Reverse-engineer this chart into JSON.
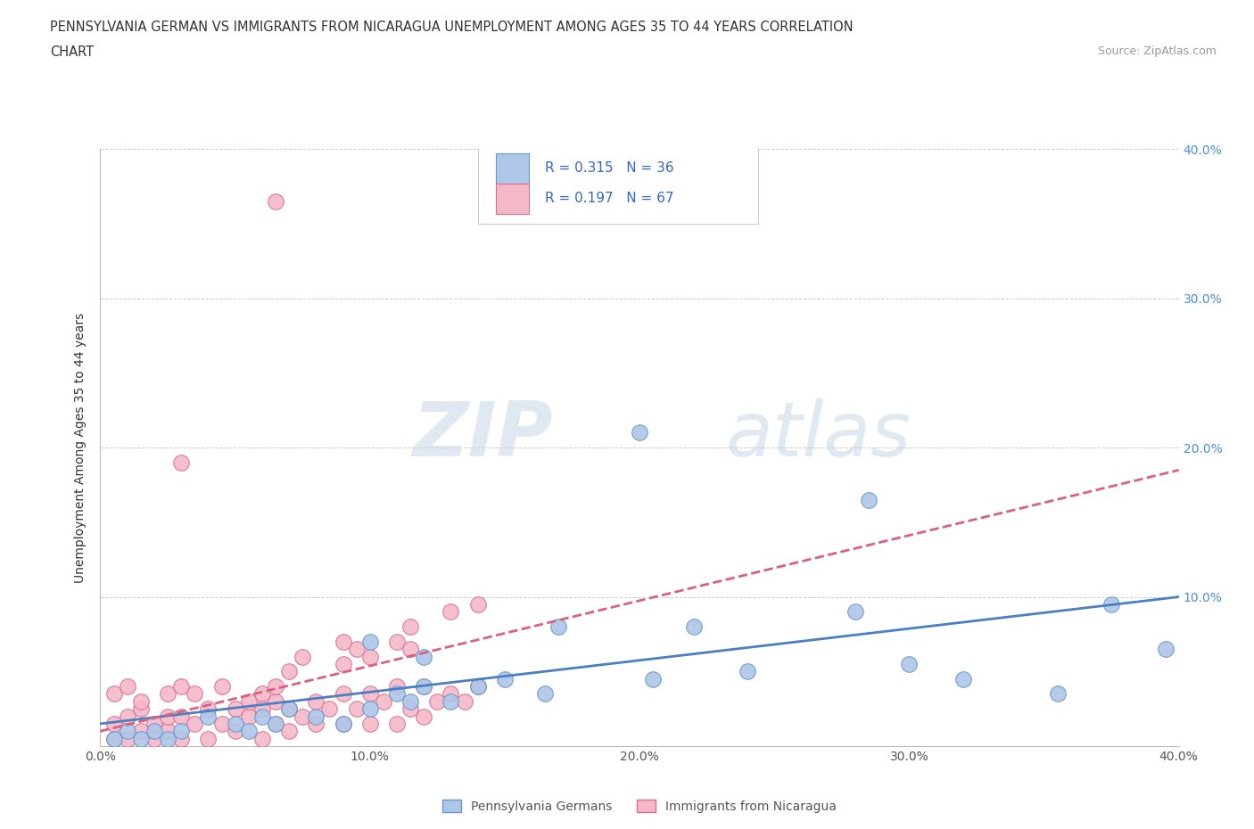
{
  "title_line1": "PENNSYLVANIA GERMAN VS IMMIGRANTS FROM NICARAGUA UNEMPLOYMENT AMONG AGES 35 TO 44 YEARS CORRELATION",
  "title_line2": "CHART",
  "source_text": "Source: ZipAtlas.com",
  "ylabel": "Unemployment Among Ages 35 to 44 years",
  "xlim": [
    0.0,
    0.4
  ],
  "ylim": [
    0.0,
    0.4
  ],
  "xtick_values": [
    0.0,
    0.1,
    0.2,
    0.3,
    0.4
  ],
  "xtick_labels": [
    "0.0%",
    "10.0%",
    "20.0%",
    "30.0%",
    "40.0%"
  ],
  "ytick_values": [
    0.1,
    0.2,
    0.3,
    0.4
  ],
  "ytick_labels": [
    "10.0%",
    "20.0%",
    "30.0%",
    "40.0%"
  ],
  "blue_fill": "#aec6e8",
  "blue_edge": "#6699cc",
  "pink_fill": "#f5b8c8",
  "pink_edge": "#d97090",
  "blue_line_color": "#4a7fc1",
  "pink_line_color": "#d96080",
  "right_axis_color": "#4a90d9",
  "legend_text_color": "#3366cc",
  "legend_R1": "R = 0.315",
  "legend_N1": "N = 36",
  "legend_R2": "R = 0.197",
  "legend_N2": "N = 67",
  "watermark_text": "ZIPatlas",
  "watermark_color": "#d0e4f0",
  "label_pennsylvania": "Pennsylvania Germans",
  "label_nicaragua": "Immigrants from Nicaragua",
  "blue_x": [
    0.005,
    0.01,
    0.015,
    0.02,
    0.025,
    0.03,
    0.04,
    0.05,
    0.055,
    0.06,
    0.065,
    0.07,
    0.08,
    0.09,
    0.1,
    0.11,
    0.115,
    0.12,
    0.13,
    0.14,
    0.15,
    0.165,
    0.2,
    0.205,
    0.24,
    0.285,
    0.3,
    0.32,
    0.355,
    0.375,
    0.395,
    0.1,
    0.12,
    0.17,
    0.22,
    0.28
  ],
  "blue_y": [
    0.005,
    0.01,
    0.005,
    0.01,
    0.005,
    0.01,
    0.02,
    0.015,
    0.01,
    0.02,
    0.015,
    0.025,
    0.02,
    0.015,
    0.025,
    0.035,
    0.03,
    0.04,
    0.03,
    0.04,
    0.045,
    0.035,
    0.21,
    0.045,
    0.05,
    0.165,
    0.055,
    0.045,
    0.035,
    0.095,
    0.065,
    0.07,
    0.06,
    0.08,
    0.08,
    0.09
  ],
  "pink_x": [
    0.005,
    0.005,
    0.01,
    0.01,
    0.015,
    0.015,
    0.02,
    0.02,
    0.025,
    0.025,
    0.03,
    0.03,
    0.035,
    0.04,
    0.04,
    0.045,
    0.05,
    0.05,
    0.055,
    0.06,
    0.06,
    0.065,
    0.065,
    0.07,
    0.07,
    0.075,
    0.08,
    0.08,
    0.085,
    0.09,
    0.09,
    0.095,
    0.1,
    0.1,
    0.105,
    0.11,
    0.11,
    0.115,
    0.12,
    0.12,
    0.125,
    0.13,
    0.135,
    0.14,
    0.005,
    0.01,
    0.015,
    0.025,
    0.03,
    0.035,
    0.045,
    0.055,
    0.06,
    0.065,
    0.07,
    0.075,
    0.09,
    0.095,
    0.1,
    0.11,
    0.115,
    0.03,
    0.065,
    0.09,
    0.115,
    0.13,
    0.14
  ],
  "pink_y": [
    0.005,
    0.015,
    0.005,
    0.02,
    0.01,
    0.025,
    0.005,
    0.015,
    0.01,
    0.02,
    0.005,
    0.02,
    0.015,
    0.005,
    0.025,
    0.015,
    0.01,
    0.025,
    0.02,
    0.005,
    0.025,
    0.015,
    0.03,
    0.01,
    0.025,
    0.02,
    0.015,
    0.03,
    0.025,
    0.015,
    0.035,
    0.025,
    0.015,
    0.035,
    0.03,
    0.015,
    0.04,
    0.025,
    0.02,
    0.04,
    0.03,
    0.035,
    0.03,
    0.04,
    0.035,
    0.04,
    0.03,
    0.035,
    0.04,
    0.035,
    0.04,
    0.03,
    0.035,
    0.04,
    0.05,
    0.06,
    0.055,
    0.065,
    0.06,
    0.07,
    0.065,
    0.19,
    0.365,
    0.07,
    0.08,
    0.09,
    0.095
  ],
  "blue_trend_x": [
    0.0,
    0.4
  ],
  "blue_trend_y": [
    0.015,
    0.1
  ],
  "pink_trend_x": [
    0.0,
    0.4
  ],
  "pink_trend_y": [
    0.01,
    0.185
  ]
}
